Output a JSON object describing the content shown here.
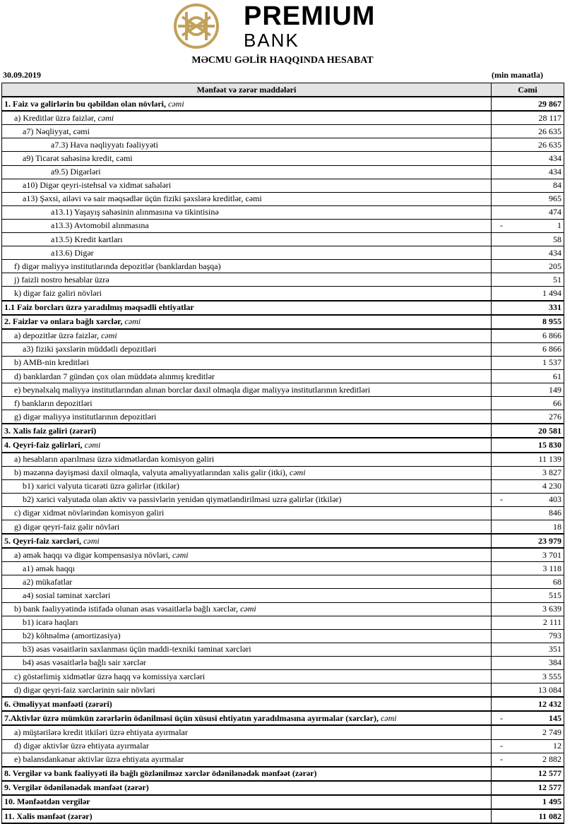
{
  "header": {
    "brand": "PREMIUM",
    "brand_sub": "BANK",
    "title": "MƏCMU GƏLİR HAQQINDA HESABAT",
    "date": "30.09.2019",
    "unit": "(min manatla)"
  },
  "table": {
    "columns": [
      "Mənfəət və zərər maddələri",
      "Cəmi"
    ],
    "rows": [
      {
        "label": "1. Faiz və gəlirlərin bu qəbildən olan növləri,",
        "em": "cəmi",
        "value": "29 867"
      },
      {
        "label": "a) Kreditlər üzrə faizlər,",
        "em": "cəmi",
        "value": "28 117"
      },
      {
        "label": "a7) Nəqliyyat, cəmi",
        "value": "26 635"
      },
      {
        "label": "a7.3) Hava nəqliyyatı fəaliyyəti",
        "value": "26 635"
      },
      {
        "label": "a9) Ticarət sahəsinə kredit, cəmi",
        "value": "434"
      },
      {
        "label": "a9.5) Digərləri",
        "value": "434"
      },
      {
        "label": "a10) Digər qeyri-istehsal və xidmət sahələri",
        "value": "84"
      },
      {
        "label": "a13) Şəxsi, ailəvi və sair məqsədlər üçün fiziki şəxslərə kreditlər, cəmi",
        "value": "965"
      },
      {
        "label": "a13.1) Yaşayış sahəsinin alınmasına və tikintisinə",
        "value": "474"
      },
      {
        "label": "a13.3) Avtomobil alınmasına",
        "sign": "-",
        "value": "1"
      },
      {
        "label": "a13.5) Kredit kartları",
        "value": "58"
      },
      {
        "label": "a13.6) Digər",
        "value": "434"
      },
      {
        "label": "f) digər maliyyə institutlarında depozitlər (banklardan başqa)",
        "value": "205"
      },
      {
        "label": "j) faizli nostro hesablar üzrə",
        "value": "51"
      },
      {
        "label": "k) digər faiz gəliri növləri",
        "value": "1 494"
      },
      {
        "label": "1.1 Faiz borcları üzrə yaradılmış məqsədli ehtiyatlar",
        "value": "331"
      },
      {
        "label": "2. Faizlər və onlara bağlı xərclər,",
        "em": "cəmi",
        "value": "8 955"
      },
      {
        "label": "a) depozitlər üzrə faizlər,",
        "em": "cəmi",
        "value": "6 866"
      },
      {
        "label": "a3) fiziki şəxslərin müddətli depozitləri",
        "value": "6 866"
      },
      {
        "label": "b) AMB-nin kreditləri",
        "value": "1 537"
      },
      {
        "label": "d) banklardan 7 gündən çox olan müddətə alınmış kreditlər",
        "value": "61"
      },
      {
        "label": "e) beynəlxalq maliyyə institutlarından alınan borclar daxil olmaqla digər maliyyə institutlarının kreditləri",
        "value": "149"
      },
      {
        "label": "f) bankların depozitləri",
        "value": "66"
      },
      {
        "label": "g) digər maliyyə institutlarının depozitləri",
        "value": "276"
      },
      {
        "label": "3. Xalis faiz gəliri (zərəri)",
        "value": "20 581"
      },
      {
        "label": "4. Qeyri-faiz gəlirləri,",
        "em": "cəmi",
        "value": "15 830"
      },
      {
        "label": "a) hesabların aparılması üzrə xidmətlərdən komisyon gəliri",
        "value": "11 139"
      },
      {
        "label": "b) məzənnə dəyişməsi daxil olmaqla, valyuta əməliyyatlarından xalis gəlir (itki),",
        "em": "cəmi",
        "value": "3 827"
      },
      {
        "label": "b1) xarici valyuta ticarəti üzrə gəlirlər (itkilər)",
        "value": "4 230"
      },
      {
        "label": "b2) xarici valyutada olan aktiv və passivlərin yenidən qiymətləndirilməsi uzrə gəlirlər (itkilər)",
        "sign": "-",
        "value": "403"
      },
      {
        "label": "c) digər xidmət növlərindən komisyon gəliri",
        "value": "846"
      },
      {
        "label": "g) digər qeyri-faiz gəlir növləri",
        "value": "18"
      },
      {
        "label": "5. Qeyri-faiz xərcləri,",
        "em": "cəmi",
        "value": "23 979"
      },
      {
        "label": "a) əmək haqqı və digər kompensasiya növləri,",
        "em": "cəmi",
        "value": "3 701"
      },
      {
        "label": "a1) əmək haqqı",
        "value": "3 118"
      },
      {
        "label": "a2) mükafatlar",
        "value": "68"
      },
      {
        "label": "a4) sosial təminat xərcləri",
        "value": "515"
      },
      {
        "label": "b) bank fəaliyyətində istifadə olunan əsas vəsaitlərlə bağlı xərclər,",
        "em": "cəmi",
        "value": "3 639"
      },
      {
        "label": "b1) icarə haqları",
        "value": "2 111"
      },
      {
        "label": "b2) köhnəlmə (amortizasiya)",
        "value": "793"
      },
      {
        "label": "b3) əsas vəsaitlərin saxlanması üçün maddi-texniki təminat xərcləri",
        "value": "351"
      },
      {
        "label": "b4) əsas vəsaitlərlə bağlı sair xərclər",
        "value": "384"
      },
      {
        "label": "c) göstərlimiş xidmətlər üzrə haqq və komissiya xərcləri",
        "value": "3 555"
      },
      {
        "label": "d) digər qeyri-faiz xərclərinin sair növləri",
        "value": "13 084"
      },
      {
        "label": "6. Əməliyyat mənfəəti (zərəri)",
        "value": "12 432"
      },
      {
        "label": "7.Aktivlər üzrə mümkün zərərlərin ödənilməsi üçün xüsusi ehtiyatın yaradılmasına ayırmalar (xərclər),",
        "em": "cəmi",
        "sign": "-",
        "value": "145"
      },
      {
        "label": "a) müştərilərə kredit itkiləri üzrə ehtiyata ayırmalar",
        "value": "2 749"
      },
      {
        "label": "d) digər aktivlər üzrə ehtiyata ayırmalar",
        "sign": "-",
        "value": "12"
      },
      {
        "label": "e) balansdankənar aktivlər üzrə ehtiyata ayırmalar",
        "sign": "-",
        "value": "2 882"
      },
      {
        "label": "8. Vergilər və bank fəaliyyəti ilə bağlı gözlənilməz xərclər ödənilənədək mənfəət (zərər)",
        "value": "12 577"
      },
      {
        "label": "9. Vergilər ödənilənədək mənfəət (zərər)",
        "value": "12 577"
      },
      {
        "label": "10. Mənfəətdən vergilər",
        "value": "1 495"
      },
      {
        "label": "11. Xalis mənfəət (zərər)",
        "value": "11 082"
      }
    ]
  }
}
